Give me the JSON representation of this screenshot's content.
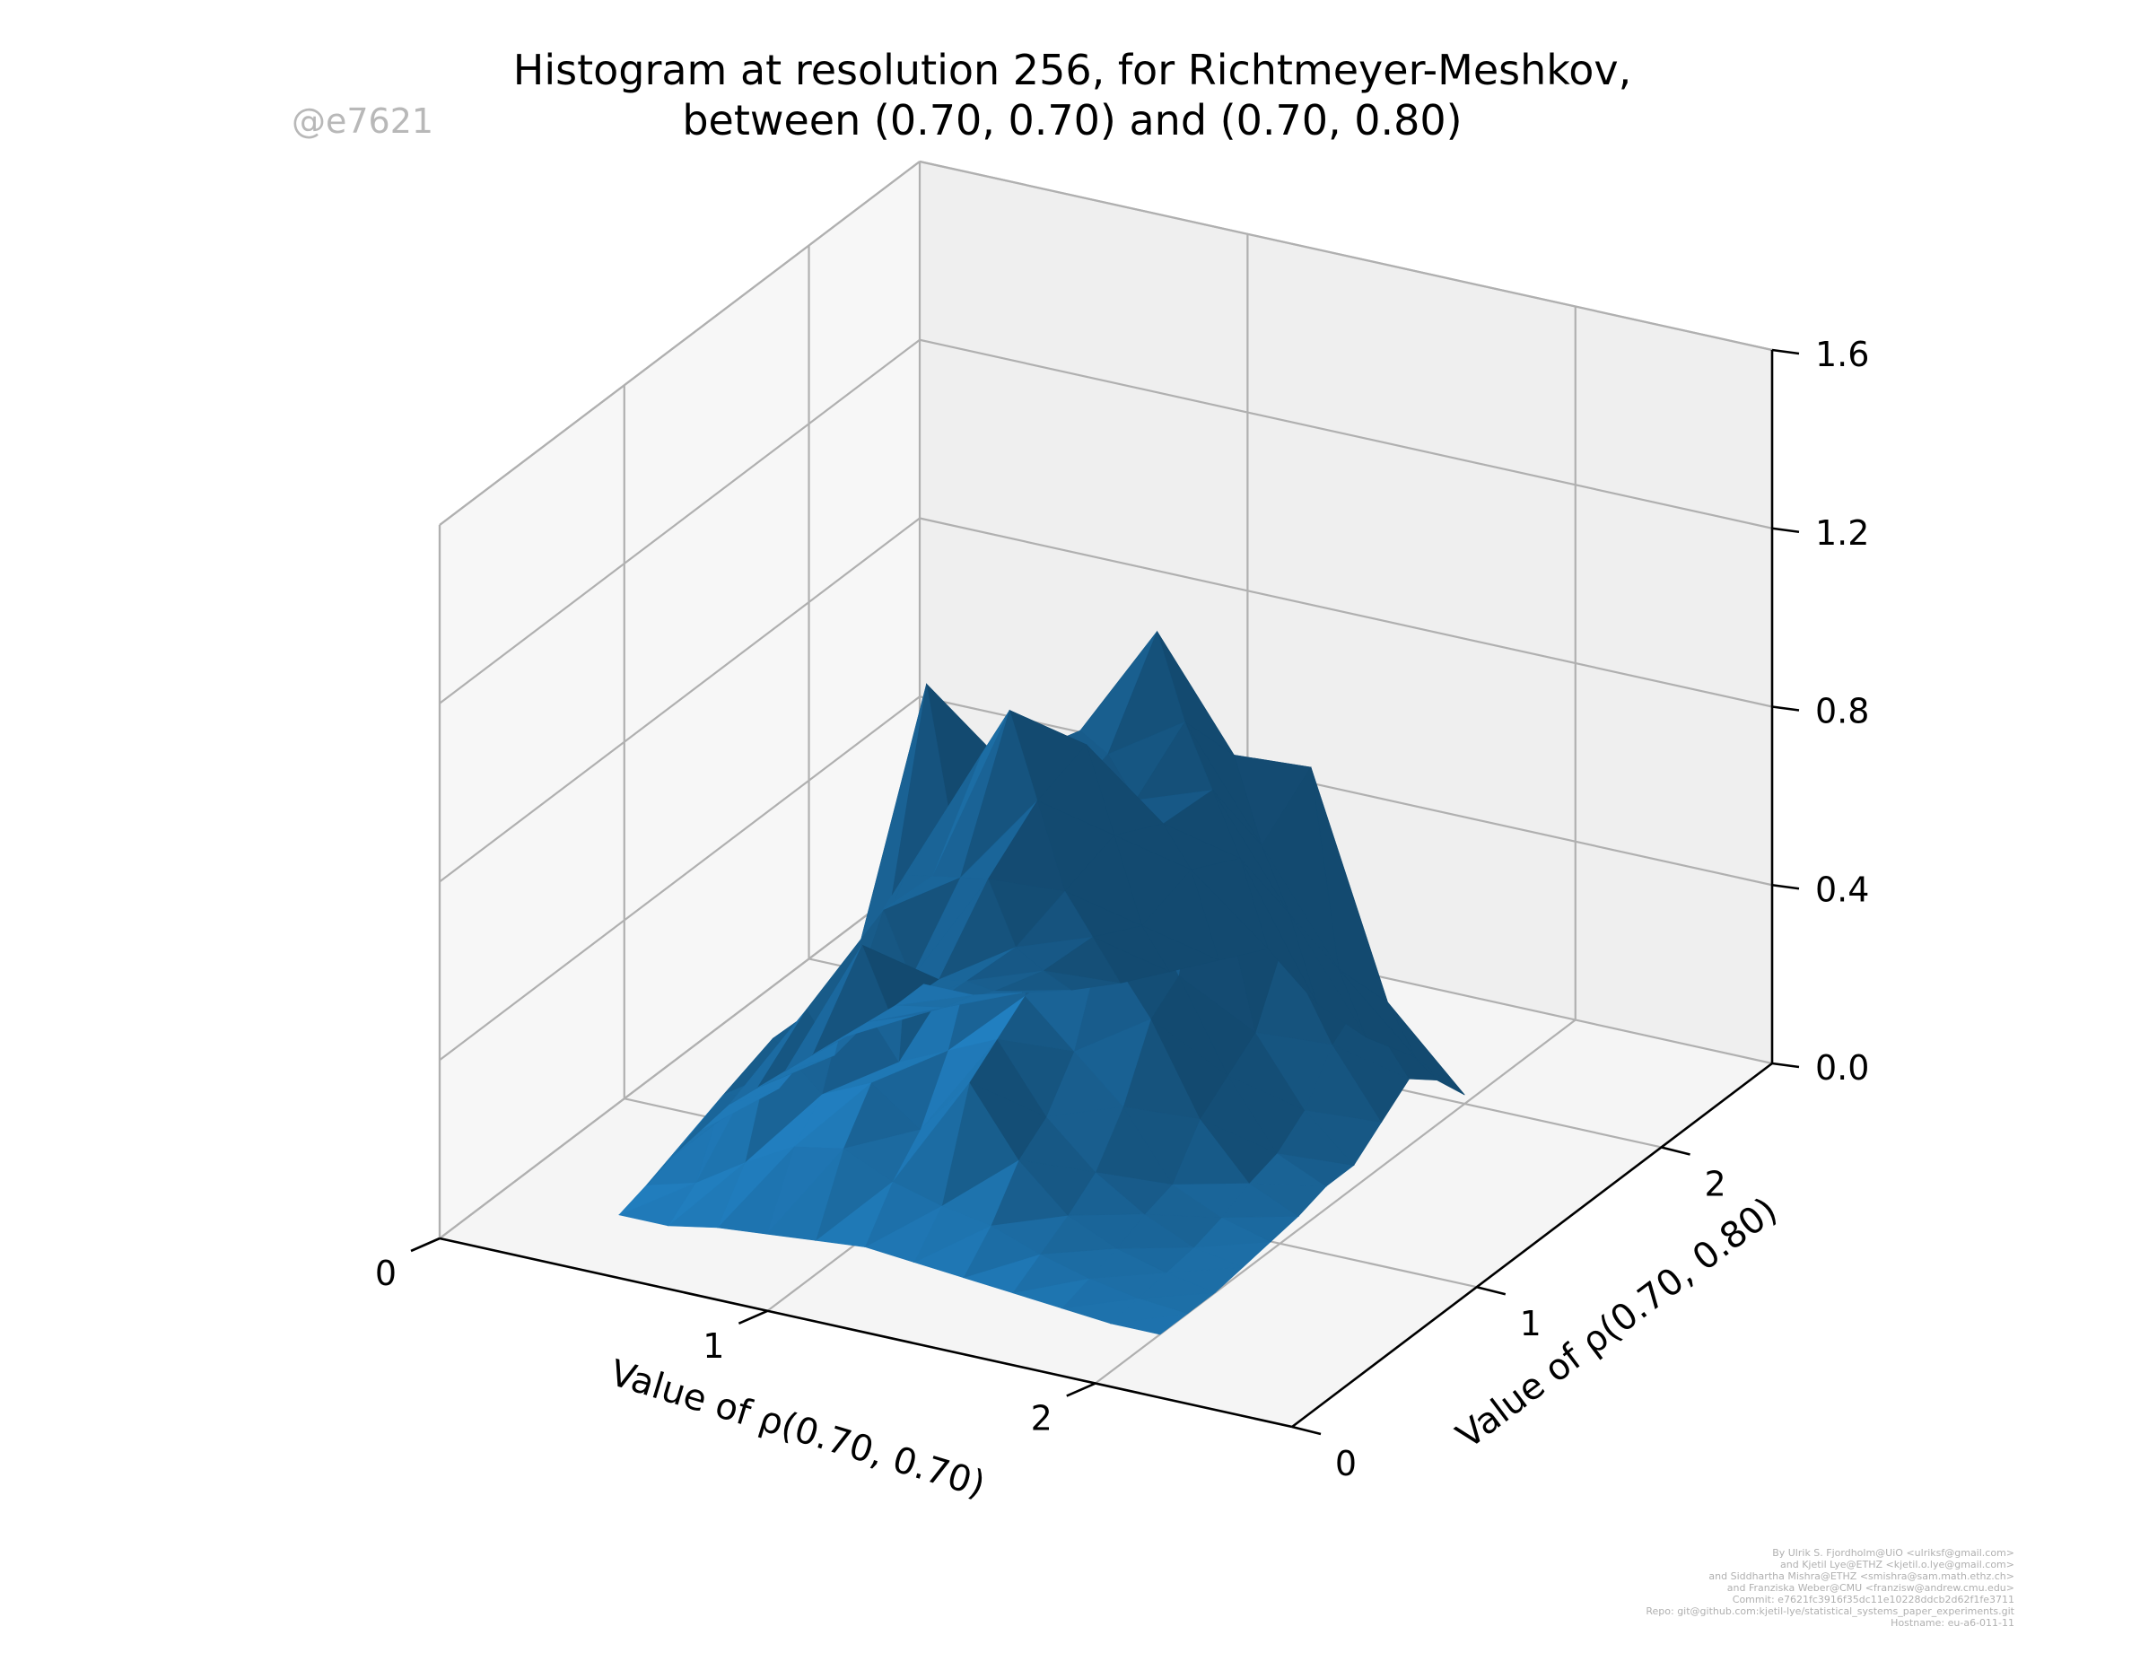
{
  "watermark": "@e7621",
  "credits": [
    "By Ulrik S. Fjordholm@UiO <ulriksf@gmail.com>",
    "and Kjetil Lye@ETHZ <kjetil.o.lye@gmail.com>",
    "and Siddhartha Mishra@ETHZ <smishra@sam.math.ethz.ch>",
    "and Franziska Weber@CMU <franzisw@andrew.cmu.edu>",
    "Commit: e7621fc3916f35dc11e10228ddcb2d62f1fe3711",
    "Repo: git@github.com:kjetil-lye/statistical_systems_paper_experiments.git",
    "Hostname: eu-a6-011-11"
  ],
  "colors": {
    "surface": "#1f77b4",
    "pane": "#f2f2f2",
    "grid": "#b0b0b0",
    "axis": "#000000"
  },
  "chart_data": {
    "type": "surface3d",
    "title_line1": "Histogram at resolution 256, for Richtmeyer-Meshkov,",
    "title_line2": "between (0.70, 0.70) and (0.70, 0.80)",
    "xlabel": "Value of ρ(0.70, 0.70)",
    "ylabel": "Value of ρ(0.70, 0.80)",
    "zlabel": "",
    "xlim": [
      0,
      2.6
    ],
    "ylim": [
      0,
      2.6
    ],
    "zlim": [
      0,
      1.6
    ],
    "x_ticks": [
      "0",
      "1",
      "2"
    ],
    "y_ticks": [
      "0",
      "1",
      "2"
    ],
    "z_ticks": [
      "0.0",
      "0.4",
      "0.8",
      "1.2",
      "1.6"
    ],
    "x": [
      0.35,
      0.5,
      0.65,
      0.8,
      0.95,
      1.1,
      1.25,
      1.4,
      1.55,
      1.7,
      1.85,
      2.0
    ],
    "y": [
      0.35,
      0.5,
      0.65,
      0.8,
      0.95,
      1.1,
      1.25,
      1.4,
      1.55,
      1.7,
      1.85,
      2.0
    ],
    "z": [
      [
        0.0,
        0.0,
        0.02,
        0.03,
        0.04,
        0.05,
        0.04,
        0.03,
        0.02,
        0.01,
        0.0,
        0.0
      ],
      [
        0.02,
        0.05,
        0.12,
        0.18,
        0.2,
        0.15,
        0.12,
        0.1,
        0.06,
        0.03,
        0.01,
        0.0
      ],
      [
        0.04,
        0.2,
        0.35,
        0.25,
        0.3,
        0.22,
        0.35,
        0.2,
        0.1,
        0.05,
        0.02,
        0.0
      ],
      [
        0.05,
        0.15,
        0.25,
        0.45,
        0.3,
        0.35,
        0.4,
        0.25,
        0.15,
        0.08,
        0.03,
        0.01
      ],
      [
        0.06,
        0.12,
        0.35,
        0.4,
        1.1,
        0.55,
        0.45,
        0.35,
        0.25,
        0.1,
        0.05,
        0.02
      ],
      [
        0.05,
        0.25,
        0.3,
        0.6,
        0.7,
        0.9,
        0.75,
        0.55,
        0.4,
        0.2,
        0.08,
        0.03
      ],
      [
        0.04,
        0.1,
        0.45,
        0.55,
        0.85,
        0.8,
        0.95,
        0.65,
        0.45,
        0.25,
        0.1,
        0.05
      ],
      [
        0.03,
        0.3,
        0.25,
        0.5,
        0.9,
        0.7,
        0.85,
        1.15,
        0.75,
        0.3,
        0.15,
        0.05
      ],
      [
        0.02,
        0.1,
        0.2,
        0.45,
        0.65,
        0.8,
        0.7,
        0.9,
        0.85,
        0.45,
        0.25,
        0.1
      ],
      [
        0.01,
        0.05,
        0.15,
        0.25,
        0.4,
        0.55,
        0.6,
        0.7,
        0.6,
        0.8,
        0.3,
        0.15
      ],
      [
        0.0,
        0.02,
        0.08,
        0.15,
        0.25,
        0.3,
        0.45,
        0.5,
        0.4,
        0.3,
        0.25,
        0.1
      ],
      [
        0.0,
        0.0,
        0.03,
        0.06,
        0.1,
        0.15,
        0.2,
        0.25,
        0.15,
        0.1,
        0.08,
        0.02
      ]
    ]
  }
}
